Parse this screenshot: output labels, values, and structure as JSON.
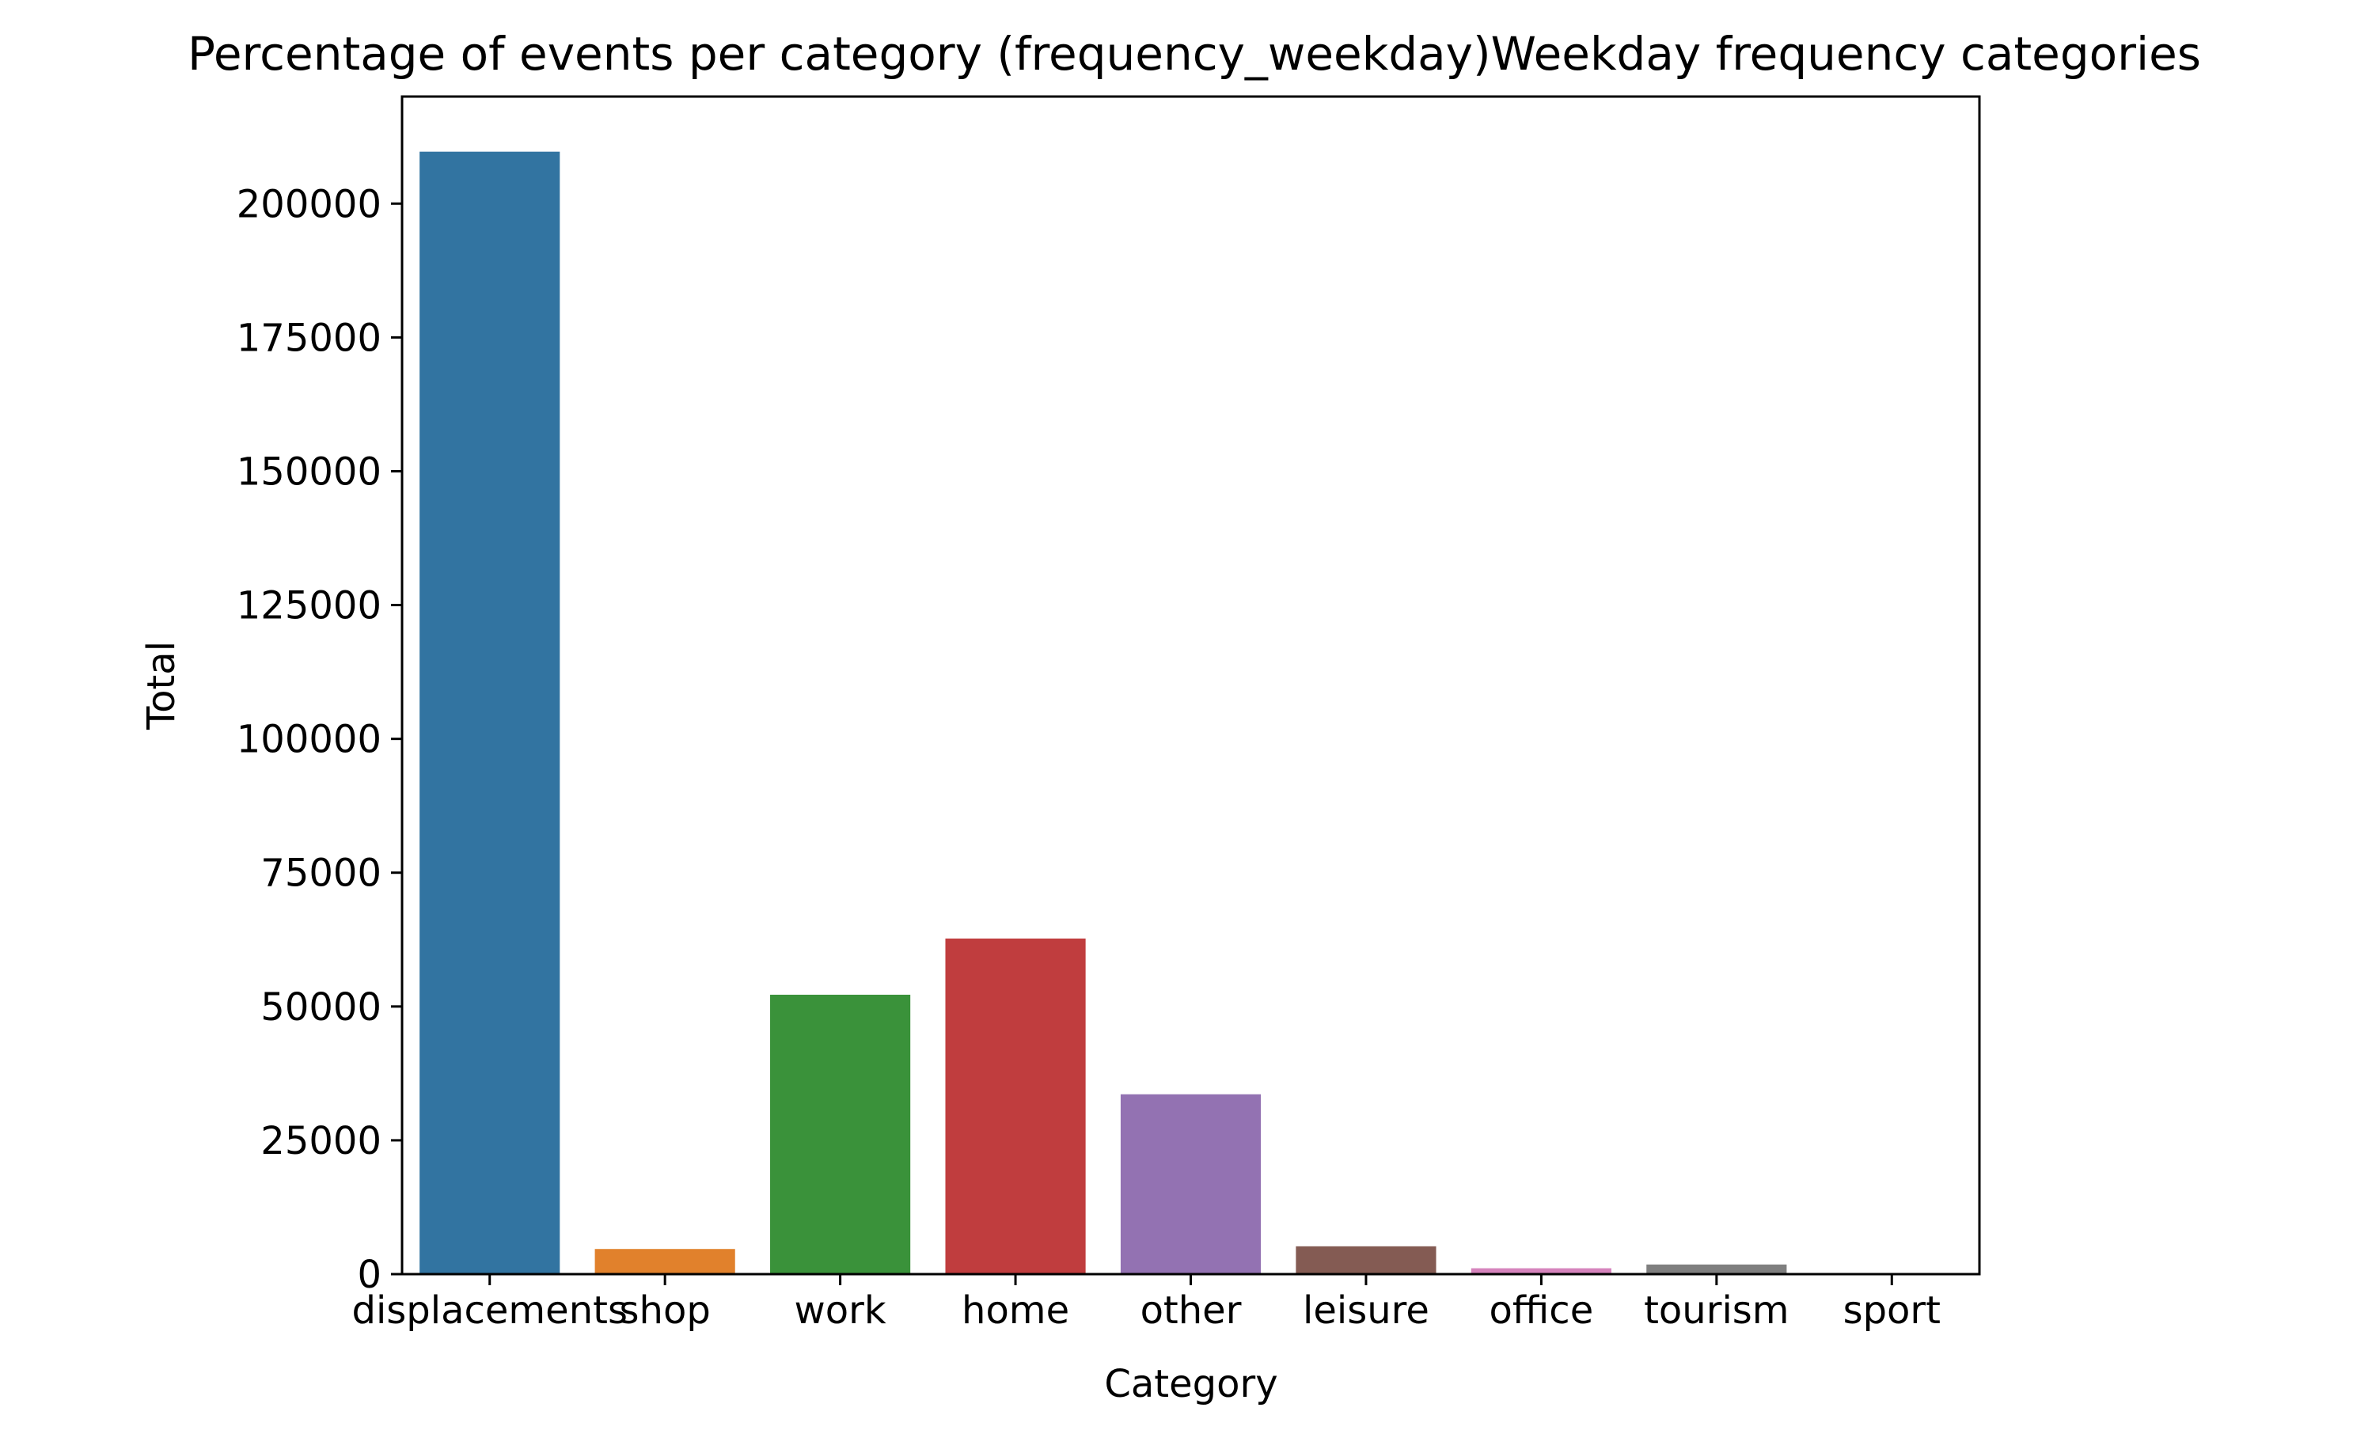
{
  "chart_data": {
    "type": "bar",
    "title": "Percentage of events per category (frequency_weekday)Weekday frequency categories",
    "xlabel": "Category",
    "ylabel": "Total",
    "categories": [
      "displacements",
      "shop",
      "work",
      "home",
      "other",
      "leisure",
      "office",
      "tourism",
      "sport"
    ],
    "values": [
      209700,
      4700,
      52200,
      62700,
      33600,
      5200,
      1100,
      1800,
      100
    ],
    "colors": [
      "#3274a1",
      "#e1812c",
      "#3a923a",
      "#c03d3e",
      "#9372b2",
      "#845b53",
      "#d684bd",
      "#7f7f7f",
      "#a9aa35"
    ],
    "yticks": [
      0,
      25000,
      50000,
      75000,
      100000,
      125000,
      150000,
      175000,
      200000
    ],
    "ylim": [
      0,
      220000
    ],
    "grid": false,
    "legend": "none"
  }
}
